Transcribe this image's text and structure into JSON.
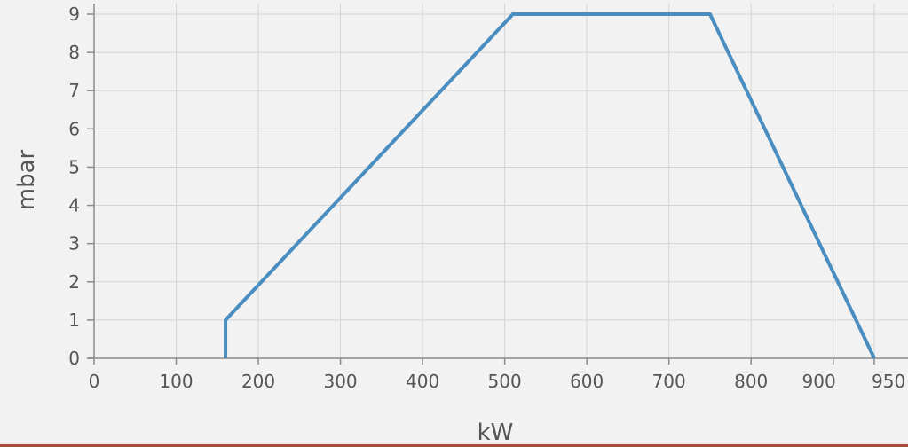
{
  "chart_data": {
    "type": "line",
    "title": "",
    "xlabel": "kW",
    "ylabel": "mbar",
    "xlim": [
      0,
      950
    ],
    "ylim": [
      0,
      9
    ],
    "x_ticks": [
      0,
      100,
      200,
      300,
      400,
      500,
      600,
      700,
      800,
      900,
      950
    ],
    "x_tick_labels": [
      "0",
      "100",
      "200",
      "300",
      "400",
      "500",
      "600",
      "700",
      "800",
      "900",
      "950"
    ],
    "y_ticks": [
      0,
      1,
      2,
      3,
      4,
      5,
      6,
      7,
      8,
      9
    ],
    "y_tick_labels": [
      "0",
      "1",
      "2",
      "3",
      "4",
      "5",
      "6",
      "7",
      "8",
      "9"
    ],
    "grid": true,
    "series": [
      {
        "color": "#4a8dc0",
        "x": [
          160,
          160,
          510,
          750,
          950
        ],
        "y": [
          0,
          1,
          9,
          9,
          0
        ]
      }
    ]
  }
}
